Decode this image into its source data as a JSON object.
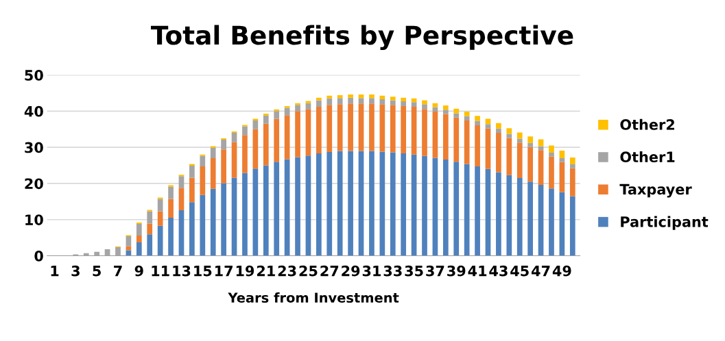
{
  "chart_data": {
    "type": "bar",
    "title": "Total Benefits by Perspective",
    "xlabel": "Years from Investment",
    "categories": [
      "1",
      null,
      "3",
      null,
      "5",
      null,
      "7",
      null,
      "9",
      null,
      "11",
      null,
      "13",
      null,
      "15",
      null,
      "17",
      null,
      "19",
      null,
      "21",
      null,
      "23",
      null,
      "25",
      null,
      "27",
      null,
      "29",
      null,
      "31",
      null,
      "33",
      null,
      "35",
      null,
      "37",
      null,
      "39",
      null,
      "41",
      null,
      "43",
      null,
      "45",
      null,
      "47",
      null,
      "49",
      null
    ],
    "stacked": true,
    "ylim": [
      0,
      50
    ],
    "yticks": [
      0,
      10,
      20,
      30,
      40,
      50
    ],
    "grid": "y",
    "legend": "right",
    "series": [
      {
        "name": "Participant",
        "color": "#4f81bd",
        "values": [
          0,
          0,
          0,
          0,
          0,
          0,
          0,
          1.5,
          3.7,
          5.9,
          8.3,
          10.5,
          12.6,
          14.8,
          16.8,
          18.5,
          20.1,
          21.6,
          22.9,
          24.1,
          25.0,
          26.0,
          26.7,
          27.3,
          27.7,
          28.3,
          28.7,
          29.0,
          29.0,
          29.0,
          29.0,
          28.8,
          28.6,
          28.3,
          28.0,
          27.6,
          27.1,
          26.6,
          26.0,
          25.4,
          24.7,
          24.0,
          23.1,
          22.3,
          21.5,
          20.5,
          19.6,
          18.6,
          17.6,
          16.5
        ]
      },
      {
        "name": "Taxpayer",
        "color": "#ed7d31",
        "values": [
          0,
          0,
          0,
          0,
          0,
          0,
          0,
          1.1,
          1.9,
          3.0,
          4.0,
          5.2,
          6.2,
          6.8,
          7.9,
          8.5,
          9.3,
          9.8,
          10.5,
          10.9,
          11.5,
          11.9,
          12.2,
          12.7,
          12.9,
          12.9,
          13.0,
          12.9,
          13.1,
          13.1,
          13.1,
          13.1,
          13.1,
          13.1,
          13.2,
          13.0,
          12.8,
          12.6,
          12.2,
          12.0,
          11.4,
          11.2,
          10.9,
          10.3,
          9.8,
          9.6,
          9.6,
          8.8,
          8.3,
          7.7
        ]
      },
      {
        "name": "Other1",
        "color": "#a5a5a5",
        "values": [
          0,
          0,
          0.4,
          0.7,
          1.1,
          1.8,
          2.4,
          2.8,
          3.2,
          3.4,
          3.4,
          3.4,
          3.2,
          3.3,
          2.9,
          2.9,
          2.7,
          2.6,
          2.4,
          2.4,
          2.3,
          2.1,
          2.0,
          1.7,
          1.6,
          1.8,
          1.8,
          1.7,
          1.6,
          1.5,
          1.5,
          1.4,
          1.3,
          1.3,
          1.3,
          1.3,
          1.2,
          1.2,
          1.2,
          1.2,
          1.2,
          1.2,
          1.2,
          1.1,
          1.1,
          1.1,
          1.1,
          1.1,
          1.1,
          1.1
        ]
      },
      {
        "name": "Other2",
        "color": "#ffc000",
        "values": [
          0,
          0,
          0,
          0,
          0,
          0,
          0.2,
          0.3,
          0.4,
          0.4,
          0.4,
          0.4,
          0.4,
          0.5,
          0.4,
          0.4,
          0.4,
          0.4,
          0.4,
          0.5,
          0.5,
          0.5,
          0.5,
          0.5,
          0.6,
          0.7,
          0.8,
          0.8,
          0.9,
          1.0,
          1.0,
          1.0,
          1.0,
          1.0,
          1.0,
          1.1,
          1.1,
          1.2,
          1.3,
          1.3,
          1.4,
          1.5,
          1.5,
          1.6,
          1.7,
          1.8,
          1.9,
          2.0,
          2.1,
          1.9
        ]
      }
    ]
  }
}
